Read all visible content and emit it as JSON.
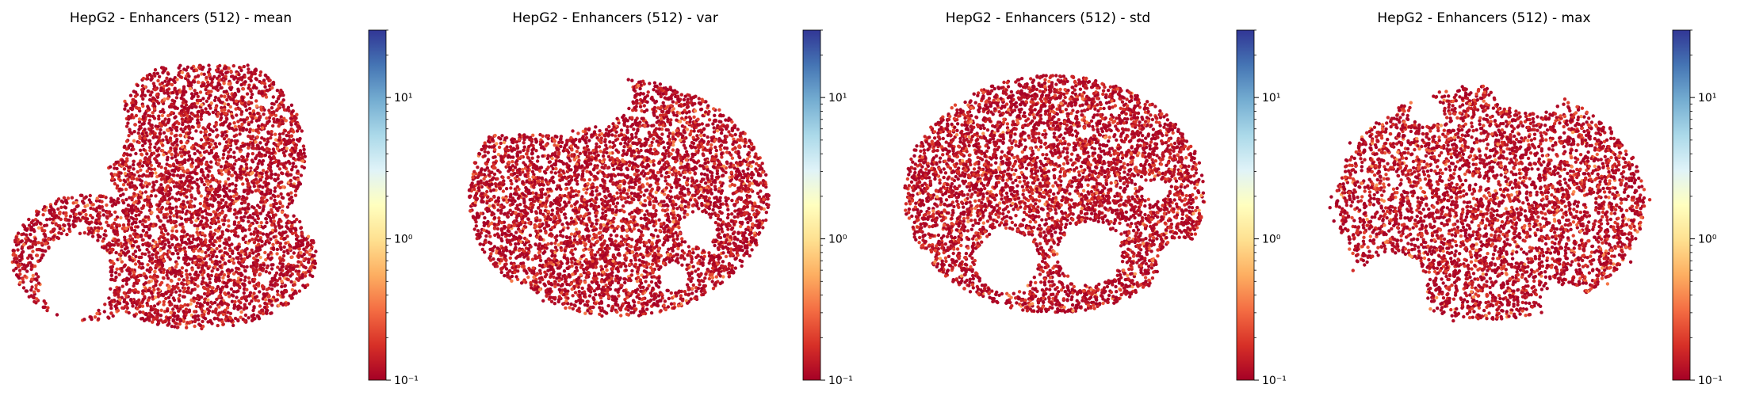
{
  "chart_data": [
    {
      "type": "scatter",
      "title": "HepG2 - Enhancers (512) - mean",
      "xlabel": "",
      "ylabel": "",
      "grid": false,
      "axes_visible": false,
      "point_count_approx": 4500,
      "color_scale": {
        "type": "log",
        "colormap": "RdYlBu",
        "range": [
          0.1,
          30
        ],
        "ticks": [
          {
            "value": 0.1,
            "label": "10⁻¹"
          },
          {
            "value": 1,
            "label": "10⁰"
          },
          {
            "value": 10,
            "label": "10¹"
          }
        ]
      },
      "value_distribution": "mostly near 0.1 (dark red), scattered orange to 0.3"
    },
    {
      "type": "scatter",
      "title": "HepG2 - Enhancers (512) - var",
      "xlabel": "",
      "ylabel": "",
      "grid": false,
      "axes_visible": false,
      "point_count_approx": 4500,
      "color_scale": {
        "type": "log",
        "colormap": "RdYlBu",
        "range": [
          0.1,
          30
        ],
        "ticks": [
          {
            "value": 0.1,
            "label": "10⁻¹"
          },
          {
            "value": 1,
            "label": "10⁰"
          },
          {
            "value": 10,
            "label": "10¹"
          }
        ]
      },
      "value_distribution": "mostly near 0.1 (dark red), scattered orange to 0.3"
    },
    {
      "type": "scatter",
      "title": "HepG2 - Enhancers (512) - std",
      "xlabel": "",
      "ylabel": "",
      "grid": false,
      "axes_visible": false,
      "point_count_approx": 4500,
      "color_scale": {
        "type": "log",
        "colormap": "RdYlBu",
        "range": [
          0.1,
          30
        ],
        "ticks": [
          {
            "value": 0.1,
            "label": "10⁻¹"
          },
          {
            "value": 1,
            "label": "10⁰"
          },
          {
            "value": 10,
            "label": "10¹"
          }
        ]
      },
      "value_distribution": "mostly near 0.1 (dark red), scattered orange to 0.3"
    },
    {
      "type": "scatter",
      "title": "HepG2 - Enhancers (512) - max",
      "xlabel": "",
      "ylabel": "",
      "grid": false,
      "axes_visible": false,
      "point_count_approx": 4000,
      "color_scale": {
        "type": "log",
        "colormap": "RdYlBu",
        "range": [
          0.1,
          30
        ],
        "ticks": [
          {
            "value": 0.1,
            "label": "10⁻¹"
          },
          {
            "value": 1,
            "label": "10⁰"
          },
          {
            "value": 10,
            "label": "10¹"
          }
        ]
      },
      "value_distribution": "mostly near 0.1 (dark red), scattered orange to 0.3"
    }
  ],
  "colors": {
    "low": "#a50026",
    "mid": "#ffffbf",
    "high": "#313695",
    "colormap_stops": [
      "#a50026",
      "#d73027",
      "#f46d43",
      "#fdae61",
      "#fee090",
      "#ffffbf",
      "#e0f3f8",
      "#abd9e9",
      "#74add1",
      "#4575b4",
      "#313695"
    ]
  }
}
